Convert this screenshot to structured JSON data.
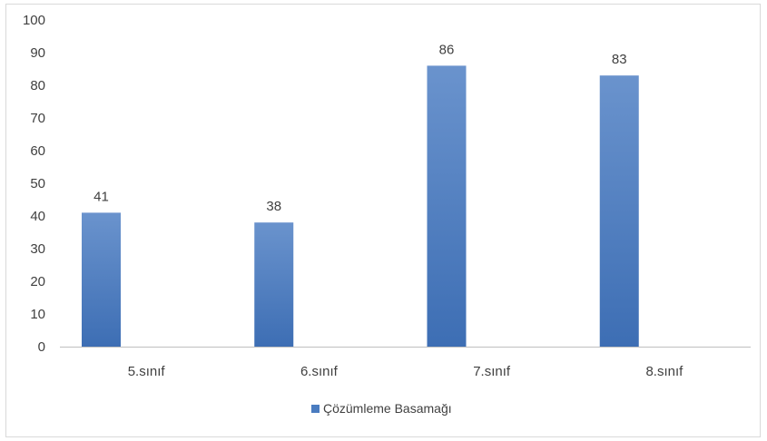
{
  "chart_data": {
    "type": "bar",
    "categories": [
      "5.sınıf",
      "6.sınıf",
      "7.sınıf",
      "8.sınıf"
    ],
    "series": [
      {
        "name": "Çözümleme Basamağı",
        "values": [
          41,
          38,
          86,
          83
        ]
      }
    ],
    "ylim": [
      0,
      100
    ],
    "yticks": [
      0,
      10,
      20,
      30,
      40,
      50,
      60,
      70,
      80,
      90,
      100
    ],
    "grid": false,
    "data_labels": true,
    "legend_position": "bottom",
    "colors": {
      "bar_top": "#6a93cd",
      "bar_bottom": "#3d6eb4",
      "legend_swatch": "#4a7cc0",
      "axis": "#bfbfbf",
      "text": "#404040"
    }
  }
}
